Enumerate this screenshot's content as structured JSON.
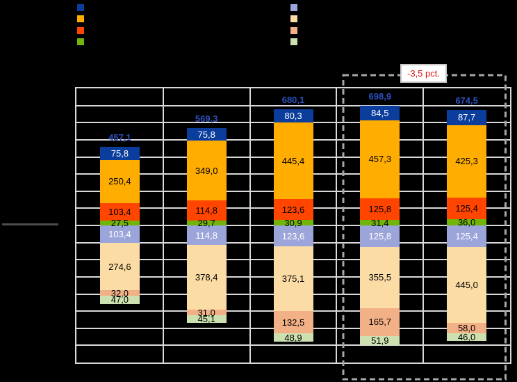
{
  "colors": {
    "background": "#000000",
    "grid_line": "#D9D9D9",
    "total_label": "#2B51BE",
    "reference_line": "#4D4D4D"
  },
  "legend": {
    "left_swatches": [
      "#0A3D9C",
      "#FFAD00",
      "#FF4500",
      "#72B50A"
    ],
    "right_swatches": [
      "#9CA5D9",
      "#FBDCA5",
      "#F2B086",
      "#CDE1B0"
    ]
  },
  "annotation": {
    "label": "-3,5 pct.",
    "text_color": "#E01212",
    "box_border_color": "#C9C9C9",
    "dash_color": "#A6A6A6"
  },
  "chart_data": {
    "type": "bar",
    "subtype": "diverging-stacked",
    "decimal_separator": ",",
    "grid": {
      "rows": 16,
      "cols": 5,
      "units_per_row": 100
    },
    "legend_position": "top",
    "upper_segment_colors": [
      "#0A3D9C",
      "#FFAD00",
      "#FF4500",
      "#72B50A"
    ],
    "lower_segment_colors": [
      "#9CA5D9",
      "#FBDCA5",
      "#F2B086",
      "#CDE1B0"
    ],
    "upper_label_text_colors": [
      "#FFFFFF",
      "#000000",
      "#000000",
      "#000000"
    ],
    "lower_label_text_colors": [
      "#FFFFFF",
      "#000000",
      "#000000",
      "#000000"
    ],
    "bars": [
      {
        "total": 457.1,
        "upper": [
          75.8,
          250.4,
          103.4,
          27.5
        ],
        "lower": [
          103.4,
          274.6,
          32.0,
          47.0
        ]
      },
      {
        "total": 569.3,
        "upper": [
          75.8,
          349.0,
          114.8,
          29.7
        ],
        "lower": [
          114.8,
          378.4,
          31.0,
          45.1
        ]
      },
      {
        "total": 680.1,
        "upper": [
          80.3,
          445.4,
          123.6,
          30.9
        ],
        "lower": [
          123.6,
          375.1,
          132.5,
          48.9
        ]
      },
      {
        "total": 698.9,
        "upper": [
          84.5,
          457.3,
          125.8,
          31.4
        ],
        "lower": [
          125.8,
          355.5,
          165.7,
          51.9
        ]
      },
      {
        "total": 674.5,
        "upper": [
          87.7,
          425.3,
          125.4,
          36.0
        ],
        "lower": [
          125.4,
          445.0,
          58.0,
          46.0
        ]
      }
    ],
    "highlight": {
      "from_bar_index": 3,
      "to_bar_index": 4,
      "label": "-3,5 pct."
    }
  }
}
